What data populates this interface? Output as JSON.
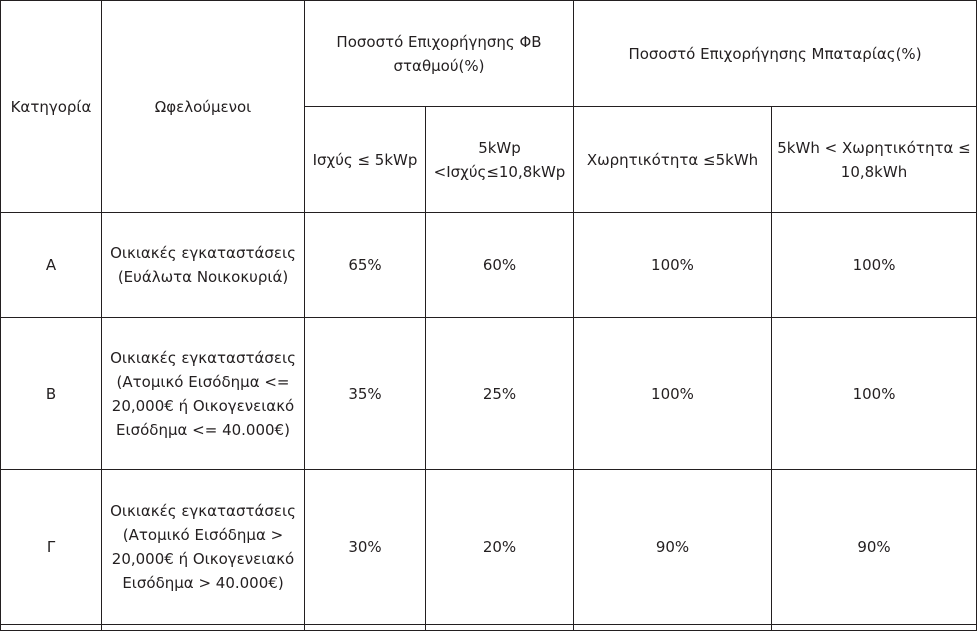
{
  "table": {
    "headers": {
      "category": "Κατηγορία",
      "beneficiaries": "Ωφελούμενοι",
      "pv_group_line1": "Ποσοστό Επιχορήγησης ΦΒ",
      "pv_group_line2": "σταθμού(%)",
      "battery_group": "Ποσοστό Επιχορήγησης Μπαταρίας(%)",
      "pv_low": "Ισχύς ≤ 5kWp",
      "pv_high_line1": "5kWp",
      "pv_high_line2": "<Ισχύς≤10,8kWp",
      "bat_low": "Χωρητικότητα ≤5kWh",
      "bat_high_line1": "5kWh < Χωρητικότητα ≤",
      "bat_high_line2": "10,8kWh"
    },
    "rows": [
      {
        "category": "Α",
        "beneficiary_lines": [
          "Οικιακές εγκαταστάσεις",
          "(Ευάλωτα Νοικοκυριά)"
        ],
        "pv_low": "65%",
        "pv_high": "60%",
        "bat_low": "100%",
        "bat_high": "100%"
      },
      {
        "category": "Β",
        "beneficiary_lines": [
          "Οικιακές εγκαταστάσεις",
          "(Ατομικό Εισόδημα <=",
          "20,000€ ή Οικογενειακό",
          "Εισόδημα <= 40.000€)"
        ],
        "pv_low": "35%",
        "pv_high": "25%",
        "bat_low": "100%",
        "bat_high": "100%"
      },
      {
        "category": "Γ",
        "beneficiary_lines": [
          "Οικιακές εγκαταστάσεις",
          "(Ατομικό Εισόδημα >",
          "20,000€ ή Οικογενειακό",
          "Εισόδημα > 40.000€)"
        ],
        "pv_low": "30%",
        "pv_high": "20%",
        "bat_low": "90%",
        "bat_high": "90%"
      }
    ]
  }
}
